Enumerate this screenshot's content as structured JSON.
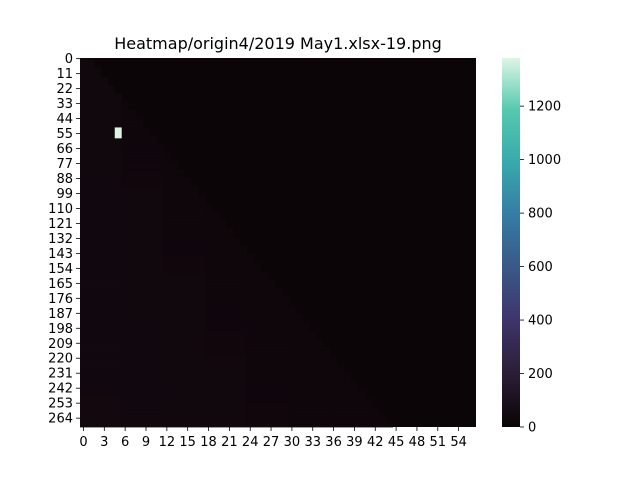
{
  "chart_data": {
    "type": "heatmap",
    "title": "Heatmap/origin4/2019 May1.xlsx-19.png",
    "xlabel": "",
    "ylabel": "",
    "n_cols": 57,
    "n_rows": 271,
    "x_tick_labels": [
      "0",
      "3",
      "6",
      "9",
      "12",
      "15",
      "18",
      "21",
      "24",
      "27",
      "30",
      "33",
      "36",
      "39",
      "42",
      "45",
      "48",
      "51",
      "54"
    ],
    "y_tick_labels": [
      "0",
      "11",
      "22",
      "33",
      "44",
      "55",
      "66",
      "77",
      "88",
      "99",
      "110",
      "121",
      "132",
      "143",
      "154",
      "165",
      "176",
      "187",
      "198",
      "209",
      "220",
      "231",
      "242",
      "253",
      "264"
    ],
    "colorbar": {
      "vmin": 0,
      "vmax": 1380,
      "tick_labels": [
        "0",
        "200",
        "400",
        "600",
        "800",
        "1000",
        "1200"
      ],
      "colormap": "mako",
      "colors": [
        "#0b0405",
        "#2b1c35",
        "#3e356b",
        "#357ba3",
        "#38aaac",
        "#55caad",
        "#def5e5"
      ]
    },
    "background_value": 8,
    "triangle_region": {
      "description_values": "near-zero low values inside lower-left triangle",
      "low": 18,
      "high": 40
    },
    "hotspot": {
      "col": 5,
      "row_start": 51,
      "row_end": 58,
      "value": 1380
    }
  }
}
